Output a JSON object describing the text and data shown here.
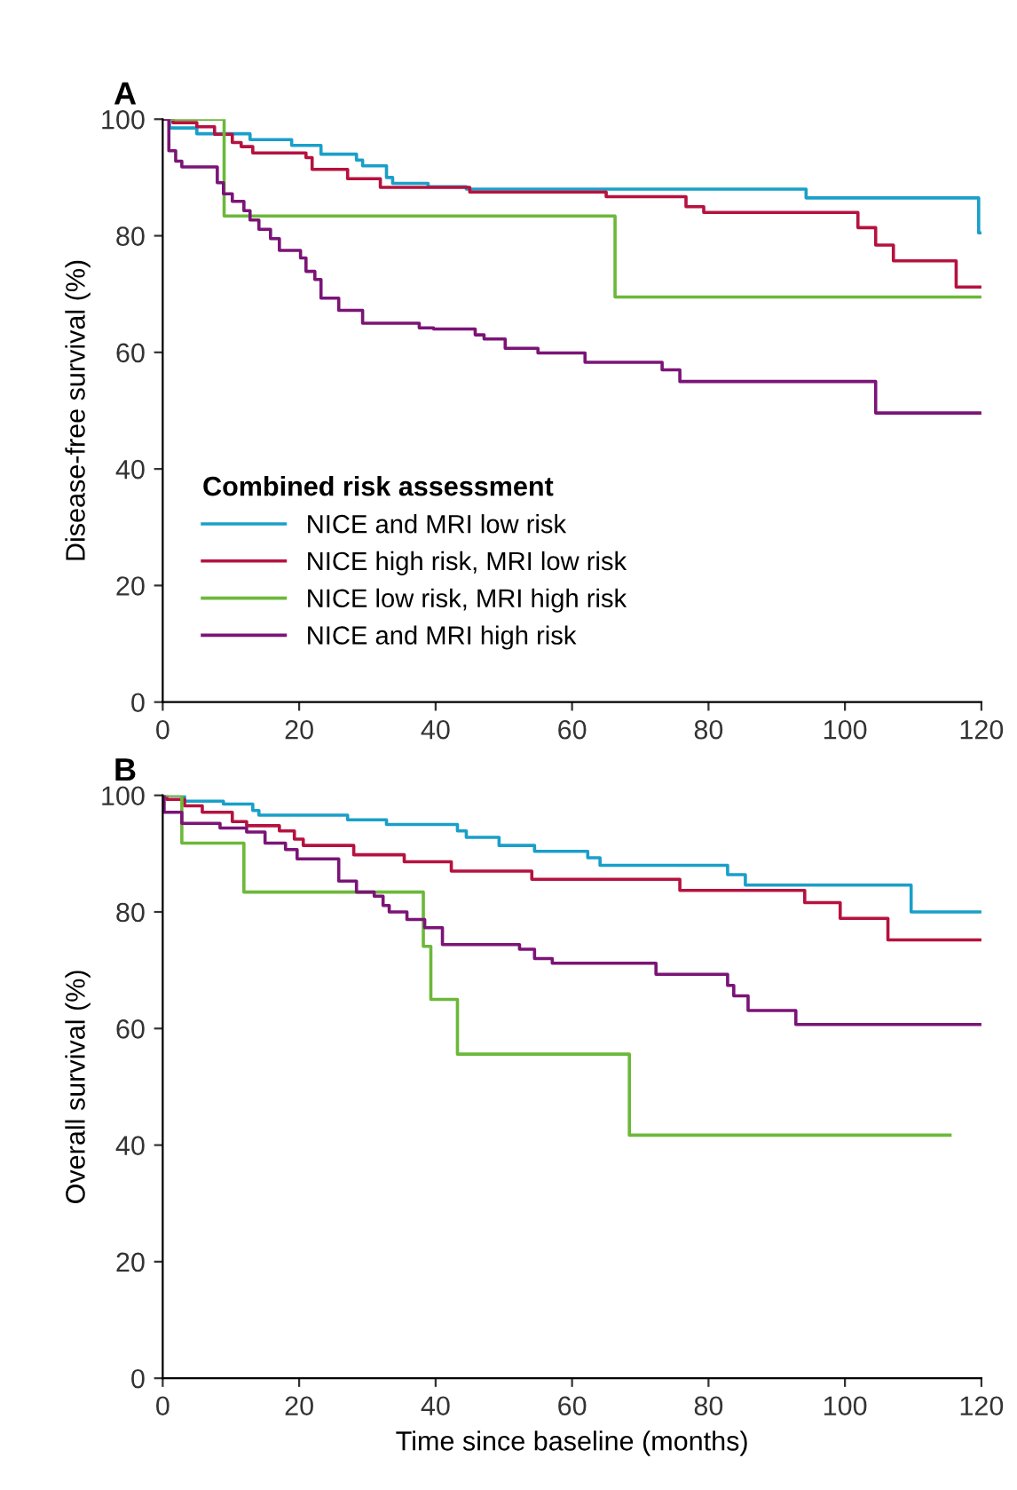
{
  "chart_data": [
    {
      "type": "step",
      "title": "A",
      "ylabel": "Disease-free survival (%)",
      "legend_title": "Combined risk assessment",
      "legend": "bottom left",
      "xlim": [
        0,
        120
      ],
      "ylim": [
        0,
        100
      ],
      "xticks": [
        0,
        20,
        40,
        60,
        80,
        100,
        120
      ],
      "yticks": [
        0,
        20,
        40,
        60,
        80,
        100
      ],
      "grid": false,
      "marker": "none",
      "line_style": "solid",
      "series": [
        {
          "name": "NICE and MRI low risk",
          "color": "#1a9fc9",
          "x": [
            0,
            1.0,
            5,
            12.8,
            18.9,
            23.2,
            28.4,
            29.3,
            32.8,
            33.7,
            38.9,
            44.5,
            94.3,
            119.6,
            120
          ],
          "values": [
            100,
            98.5,
            97.5,
            96.5,
            95.5,
            94,
            93,
            92,
            90,
            89,
            88.4,
            88,
            86.5,
            80.5,
            80.5
          ]
        },
        {
          "name": "NICE high risk, MRI low risk",
          "color": "#b5123f",
          "x": [
            0,
            1.5,
            5.0,
            7.6,
            10.2,
            11.5,
            13.2,
            21,
            21.9,
            27.1,
            31.9,
            45,
            65,
            76.7,
            79.3,
            101.9,
            104.5,
            107.1,
            116.3,
            120
          ],
          "values": [
            100,
            99.4,
            98.7,
            97.4,
            96,
            95.3,
            94.2,
            93.4,
            91.4,
            89.8,
            88.3,
            87.5,
            86.7,
            85,
            84,
            81.4,
            78.4,
            75.7,
            71.2,
            71.2
          ]
        },
        {
          "name": "NICE low risk, MRI high risk",
          "color": "#6cb83a",
          "x": [
            0,
            9.0,
            66.3,
            120
          ],
          "values": [
            100,
            83.4,
            69.5,
            69.5
          ]
        },
        {
          "name": "NICE and MRI high risk",
          "color": "#7b1477",
          "x": [
            0,
            0.9,
            1.9,
            2.8,
            8,
            8.9,
            10.2,
            11.9,
            12.8,
            14.1,
            15.8,
            17.1,
            20.2,
            21,
            22.3,
            23.2,
            25.8,
            29.3,
            37.6,
            39.7,
            45.8,
            47.1,
            50.2,
            55,
            61.9,
            73.2,
            75.8,
            104.5,
            120
          ],
          "values": [
            100,
            94.6,
            92.8,
            91.8,
            89.1,
            87.2,
            85.9,
            84.3,
            82.7,
            81.1,
            79.5,
            77.5,
            76.2,
            73.9,
            72.5,
            69.3,
            67.2,
            65,
            64.2,
            64,
            63,
            62.3,
            60.7,
            59.9,
            58.3,
            57,
            55,
            49.6,
            49.6
          ]
        }
      ]
    },
    {
      "type": "step",
      "title": "B",
      "ylabel": "Overall survival (%)",
      "xlabel": "Time since baseline (months)",
      "xlim": [
        0,
        120
      ],
      "ylim": [
        0,
        100
      ],
      "xticks": [
        0,
        20,
        40,
        60,
        80,
        100,
        120
      ],
      "yticks": [
        0,
        20,
        40,
        60,
        80,
        100
      ],
      "grid": false,
      "marker": "none",
      "line_style": "solid",
      "series": [
        {
          "color": "#1a9fc9",
          "x": [
            0,
            3.2,
            8.9,
            13.2,
            14.1,
            27.1,
            32.8,
            43.2,
            44.5,
            49.3,
            54.5,
            62.3,
            64.1,
            82.8,
            85.4,
            109.7,
            120
          ],
          "values": [
            100,
            99,
            98.5,
            97.4,
            96.6,
            95.8,
            95,
            93.9,
            92.8,
            91.4,
            90.4,
            89.3,
            88,
            86.4,
            84.6,
            80,
            80
          ]
        },
        {
          "color": "#b5123f",
          "x": [
            0,
            0.6,
            3.2,
            5.8,
            10.2,
            12.3,
            17.1,
            19.3,
            20.6,
            28,
            35.4,
            42.3,
            54.1,
            75.8,
            94.1,
            99.3,
            106.3,
            120
          ],
          "values": [
            100,
            99.3,
            98.2,
            97.1,
            95.5,
            94.8,
            93.9,
            92.5,
            91.4,
            89.8,
            88.6,
            87,
            85.6,
            83.7,
            81.6,
            78.9,
            75.2,
            75.2
          ]
        },
        {
          "color": "#6cb83a",
          "x": [
            0,
            2.8,
            11.9,
            38.2,
            39.3,
            43.2,
            68.4,
            115.4
          ],
          "values": [
            100,
            91.8,
            83.4,
            74.1,
            65,
            55.6,
            41.7,
            41.7
          ]
        },
        {
          "color": "#7b1477",
          "x": [
            0,
            0.2,
            2.8,
            8.4,
            12.3,
            15,
            18,
            19.7,
            25.8,
            28.4,
            31,
            32.3,
            33.2,
            35.8,
            38.4,
            41,
            52.3,
            54.5,
            57.1,
            72.3,
            82.8,
            83.7,
            85.8,
            92.8,
            120
          ],
          "values": [
            100,
            97.1,
            95.2,
            94.4,
            93.7,
            91.8,
            90.7,
            89.1,
            85.3,
            83.4,
            82.7,
            81.1,
            80,
            78.7,
            77.3,
            74.4,
            73.6,
            72,
            71.2,
            69.3,
            67.4,
            65.6,
            63.1,
            60.7,
            60.7
          ]
        }
      ]
    }
  ]
}
